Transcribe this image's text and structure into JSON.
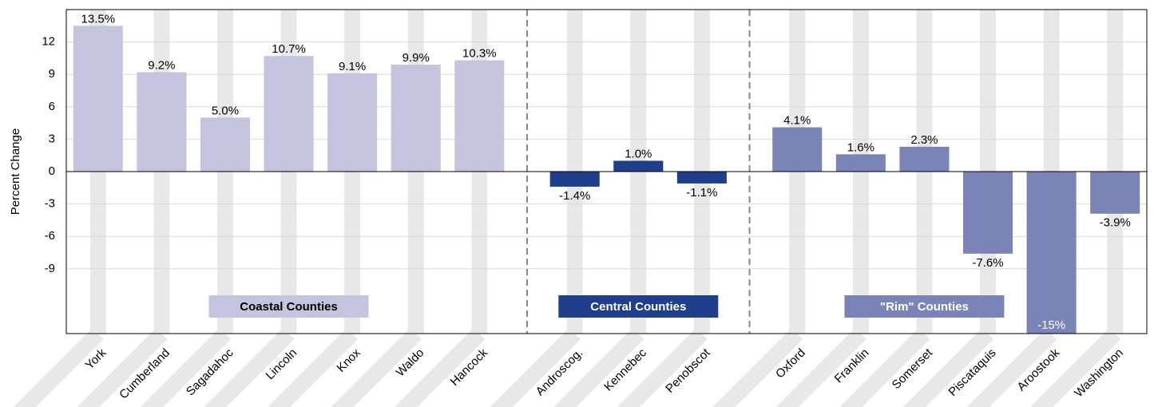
{
  "chart_data": {
    "type": "bar",
    "y_label": "Percent Change",
    "ylim": [
      -15,
      15
    ],
    "yticks": [
      -9,
      -6,
      -3,
      0,
      3,
      6,
      9,
      12
    ],
    "grid": true,
    "series": [
      {
        "name": "Coastal Counties",
        "color": "#c4c4de",
        "categories": [
          "York",
          "Cumberland",
          "Sagadahoc",
          "Lincoln",
          "Knox",
          "Waldo",
          "Hancock"
        ],
        "values": [
          13.5,
          9.2,
          5.0,
          10.7,
          9.1,
          9.9,
          10.3
        ],
        "value_labels": [
          "13.5%",
          "9.2%",
          "5.0%",
          "10.7%",
          "9.1%",
          "9.9%",
          "10.3%"
        ]
      },
      {
        "name": "Central Counties",
        "color": "#1f3f8c",
        "categories": [
          "Androscog.",
          "Kennebec",
          "Penobscot"
        ],
        "values": [
          -1.4,
          1.0,
          -1.1
        ],
        "value_labels": [
          "-1.4%",
          "1.0%",
          "-1.1%"
        ]
      },
      {
        "name": "\"Rim\" Counties",
        "color": "#7b84b6",
        "categories": [
          "Oxford",
          "Franklin",
          "Somerset",
          "Piscataquis",
          "Aroostook",
          "Washington"
        ],
        "values": [
          4.1,
          1.6,
          2.3,
          -7.6,
          -15,
          -3.9
        ],
        "value_labels": [
          "4.1%",
          "1.6%",
          "2.3%",
          "-7.6%",
          "-15%",
          "-3.9%"
        ]
      }
    ]
  }
}
